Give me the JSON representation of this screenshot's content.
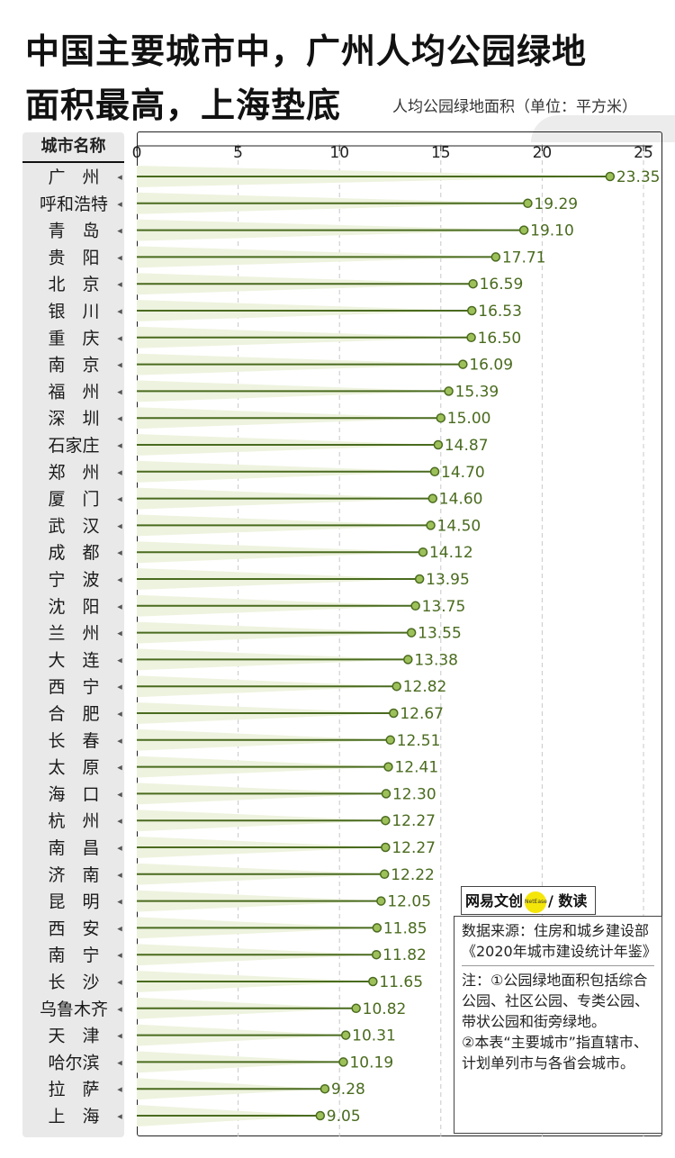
{
  "header": {
    "title_line1": "中国主要城市中，广州人均公园绿地",
    "title_line2": "面积最高，上海垫底",
    "unit": "人均公园绿地面积（单位：平方米）"
  },
  "chart_data": {
    "type": "bar",
    "category_header": "城市名称",
    "categories": [
      "广　州",
      "呼和浩特",
      "青　岛",
      "贵　阳",
      "北　京",
      "银　川",
      "重　庆",
      "南　京",
      "福　州",
      "深　圳",
      "石家庄",
      "郑　州",
      "厦　门",
      "武　汉",
      "成　都",
      "宁　波",
      "沈　阳",
      "兰　州",
      "大　连",
      "西　宁",
      "合　肥",
      "长　春",
      "太　原",
      "海　口",
      "杭　州",
      "南　昌",
      "济　南",
      "昆　明",
      "西　安",
      "南　宁",
      "长　沙",
      "乌鲁木齐",
      "天　津",
      "哈尔滨",
      "拉　萨",
      "上　海"
    ],
    "values": [
      23.35,
      19.29,
      19.1,
      17.71,
      16.59,
      16.53,
      16.5,
      16.09,
      15.39,
      15.0,
      14.87,
      14.7,
      14.6,
      14.5,
      14.12,
      13.95,
      13.75,
      13.55,
      13.38,
      12.82,
      12.67,
      12.51,
      12.41,
      12.3,
      12.27,
      12.27,
      12.22,
      12.05,
      11.85,
      11.82,
      11.65,
      10.82,
      10.31,
      10.19,
      9.28,
      9.05
    ],
    "value_labels": [
      "23.35",
      "19.29",
      "19.10",
      "17.71",
      "16.59",
      "16.53",
      "16.50",
      "16.09",
      "15.39",
      "15.00",
      "14.87",
      "14.70",
      "14.60",
      "14.50",
      "14.12",
      "13.95",
      "13.75",
      "13.55",
      "13.38",
      "12.82",
      "12.67",
      "12.51",
      "12.41",
      "12.30",
      "12.27",
      "12.27",
      "12.22",
      "12.05",
      "11.85",
      "11.82",
      "11.65",
      "10.82",
      "10.31",
      "10.19",
      "9.28",
      "9.05"
    ],
    "xlim": [
      0,
      25
    ],
    "xticks": [
      "0",
      "5",
      "10",
      "15",
      "20",
      "25"
    ],
    "grid": true,
    "colors": {
      "line": "#4a6b1f",
      "dot": "#9dc05a",
      "fill": "#eef3df"
    }
  },
  "logo": {
    "left": "网易文创",
    "badge": "NetEase",
    "right": "/ 数读"
  },
  "notes": {
    "source": "数据来源：住房和城乡建设部《2020年城市建设统计年鉴》",
    "note1": "注：①公园绿地面积包括综合公园、社区公园、专类公园、带状公园和街旁绿地。",
    "note2": "②本表“主要城市”指直辖市、计划单列市与各省会城市。"
  }
}
